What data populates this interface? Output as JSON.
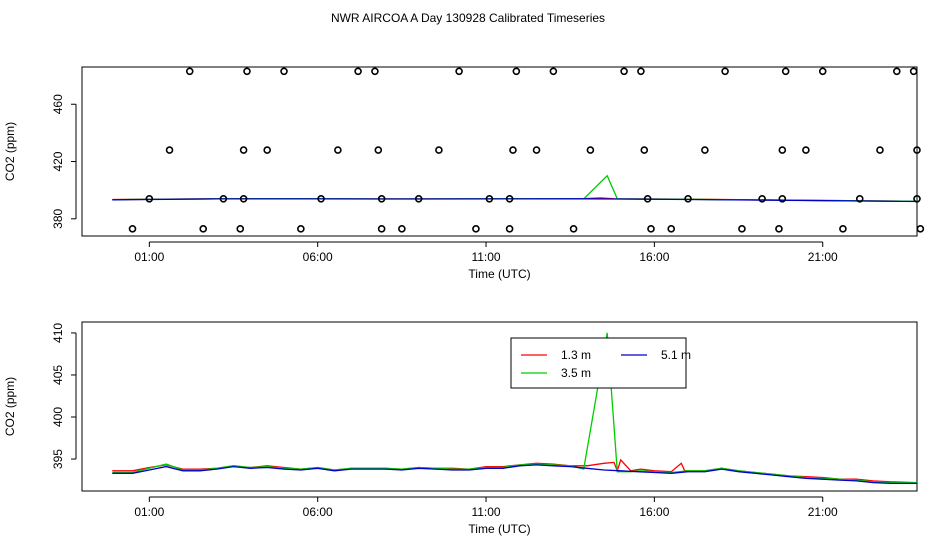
{
  "title": "NWR AIRCOA A  Day 130928  Calibrated Timeseries",
  "chart_data": [
    {
      "type": "scatter",
      "xlabel": "Time (UTC)",
      "ylabel": "CO2 (ppm)",
      "x_ticks": [
        "01:00",
        "06:00",
        "11:00",
        "16:00",
        "21:00"
      ],
      "x_tick_hours": [
        1,
        6,
        11,
        16,
        21
      ],
      "xlim_hours": [
        -1.0,
        23.8
      ],
      "y_ticks": [
        380,
        420,
        460
      ],
      "ylim": [
        368,
        486
      ],
      "colors": {
        "1.3 m": "#ff0000",
        "3.5 m": "#00cc00",
        "5.1 m": "#0000cc",
        "points": "#000000"
      },
      "points": [
        [
          0.5,
          373
        ],
        [
          1.0,
          394
        ],
        [
          1.6,
          428
        ],
        [
          2.2,
          483
        ],
        [
          2.6,
          373
        ],
        [
          3.2,
          394
        ],
        [
          3.7,
          373
        ],
        [
          3.8,
          394
        ],
        [
          3.8,
          428
        ],
        [
          3.9,
          483
        ],
        [
          4.5,
          428
        ],
        [
          5.0,
          483
        ],
        [
          5.5,
          373
        ],
        [
          6.1,
          394
        ],
        [
          6.6,
          428
        ],
        [
          7.2,
          483
        ],
        [
          7.7,
          483
        ],
        [
          7.8,
          428
        ],
        [
          7.9,
          394
        ],
        [
          7.9,
          373
        ],
        [
          8.5,
          373
        ],
        [
          9.0,
          394
        ],
        [
          9.6,
          428
        ],
        [
          10.2,
          483
        ],
        [
          10.7,
          373
        ],
        [
          11.1,
          394
        ],
        [
          11.7,
          373
        ],
        [
          11.7,
          394
        ],
        [
          11.8,
          428
        ],
        [
          11.9,
          483
        ],
        [
          12.5,
          428
        ],
        [
          13.0,
          483
        ],
        [
          13.6,
          373
        ],
        [
          14.1,
          428
        ],
        [
          15.1,
          483
        ],
        [
          15.6,
          483
        ],
        [
          15.7,
          428
        ],
        [
          15.8,
          394
        ],
        [
          15.9,
          373
        ],
        [
          16.5,
          373
        ],
        [
          17.0,
          394
        ],
        [
          17.5,
          428
        ],
        [
          18.1,
          483
        ],
        [
          18.6,
          373
        ],
        [
          19.2,
          394
        ],
        [
          19.7,
          373
        ],
        [
          19.8,
          394
        ],
        [
          19.8,
          428
        ],
        [
          19.9,
          483
        ],
        [
          20.5,
          428
        ],
        [
          21.0,
          483
        ],
        [
          21.6,
          373
        ],
        [
          22.1,
          394
        ],
        [
          22.7,
          428
        ],
        [
          23.2,
          483
        ],
        [
          23.7,
          483
        ],
        [
          23.8,
          428
        ],
        [
          23.8,
          394
        ],
        [
          23.9,
          373
        ]
      ],
      "series": [
        {
          "name": "1.3 m",
          "x": [
            -0.1,
            3.0,
            6.0,
            9.0,
            12.0,
            13.9,
            14.4,
            14.8,
            17.0,
            20.0,
            23.8
          ],
          "values": [
            393.5,
            394.0,
            394.0,
            393.9,
            394.0,
            394.1,
            394.6,
            394.0,
            393.7,
            393.0,
            392.2
          ]
        },
        {
          "name": "3.5 m",
          "x": [
            -0.1,
            3.0,
            6.0,
            9.0,
            12.0,
            13.9,
            14.6,
            14.9,
            17.0,
            20.0,
            23.8
          ],
          "values": [
            393.4,
            394.0,
            394.0,
            393.9,
            394.0,
            394.0,
            410.0,
            394.0,
            393.6,
            393.0,
            392.2
          ]
        },
        {
          "name": "5.1 m",
          "x": [
            -0.1,
            3.0,
            6.0,
            9.0,
            12.0,
            13.9,
            14.9,
            17.0,
            20.0,
            23.8
          ],
          "values": [
            393.3,
            393.9,
            393.9,
            393.8,
            393.9,
            394.0,
            393.8,
            393.5,
            392.9,
            392.1
          ]
        }
      ]
    },
    {
      "type": "line",
      "xlabel": "Time (UTC)",
      "ylabel": "CO2 (ppm)",
      "x_ticks": [
        "01:00",
        "06:00",
        "11:00",
        "16:00",
        "21:00"
      ],
      "x_tick_hours": [
        1,
        6,
        11,
        16,
        21
      ],
      "xlim_hours": [
        -1.0,
        23.8
      ],
      "y_ticks": [
        395,
        400,
        405,
        410
      ],
      "ylim": [
        391.2,
        411.3
      ],
      "legend": {
        "entries": [
          "1.3 m",
          "3.5 m",
          "5.1 m"
        ],
        "placement": "top-center"
      },
      "series": [
        {
          "name": "1.3 m",
          "color": "#ff0000",
          "x": [
            -0.1,
            0.5,
            1.0,
            1.5,
            2.0,
            2.5,
            3.0,
            3.5,
            4.0,
            4.5,
            5.0,
            5.5,
            6.0,
            6.5,
            7.0,
            7.5,
            8.0,
            8.5,
            9.0,
            9.5,
            10.0,
            10.5,
            11.0,
            11.5,
            12.0,
            12.5,
            13.0,
            13.5,
            14.0,
            14.5,
            14.8,
            14.9,
            15.0,
            15.3,
            15.6,
            16.0,
            16.5,
            16.8,
            16.9,
            17.0,
            17.5,
            18.0,
            18.5,
            19.0,
            19.5,
            20.0,
            20.5,
            21.0,
            21.5,
            22.0,
            22.5,
            23.0,
            23.8
          ],
          "values": [
            393.6,
            393.6,
            394.0,
            394.3,
            393.8,
            393.8,
            393.9,
            394.2,
            394.0,
            394.2,
            394.0,
            393.8,
            394.0,
            393.7,
            393.9,
            393.9,
            393.9,
            393.8,
            394.0,
            393.9,
            393.9,
            393.8,
            394.1,
            394.1,
            394.3,
            394.5,
            394.4,
            394.2,
            394.2,
            394.5,
            394.6,
            393.6,
            394.9,
            393.6,
            393.8,
            393.6,
            393.5,
            394.5,
            393.6,
            393.6,
            393.6,
            393.9,
            393.6,
            393.4,
            393.2,
            393.0,
            392.9,
            392.8,
            392.6,
            392.6,
            392.4,
            392.3,
            392.2
          ]
        },
        {
          "name": "3.5 m",
          "color": "#00cc00",
          "x": [
            -0.1,
            0.5,
            1.0,
            1.5,
            2.0,
            2.5,
            3.0,
            3.5,
            4.0,
            4.5,
            5.0,
            5.5,
            6.0,
            6.5,
            7.0,
            7.5,
            8.0,
            8.5,
            9.0,
            9.5,
            10.0,
            10.5,
            11.0,
            11.5,
            12.0,
            12.5,
            13.0,
            13.5,
            13.9,
            14.6,
            14.9,
            15.3,
            15.6,
            16.0,
            16.5,
            17.0,
            17.5,
            18.0,
            18.5,
            19.0,
            19.5,
            20.0,
            20.5,
            21.0,
            21.5,
            22.0,
            22.5,
            23.0,
            23.8
          ],
          "values": [
            393.4,
            393.4,
            393.9,
            394.4,
            393.7,
            393.7,
            393.9,
            394.2,
            394.0,
            394.1,
            393.9,
            393.8,
            394.0,
            393.7,
            393.9,
            393.9,
            393.9,
            393.8,
            394.0,
            393.9,
            393.8,
            393.8,
            394.0,
            394.0,
            394.3,
            394.4,
            394.3,
            394.2,
            393.8,
            410.0,
            393.5,
            393.5,
            393.6,
            393.5,
            393.4,
            393.6,
            393.6,
            393.9,
            393.6,
            393.4,
            393.2,
            393.0,
            392.8,
            392.7,
            392.6,
            392.5,
            392.3,
            392.2,
            392.2
          ]
        },
        {
          "name": "5.1 m",
          "color": "#0000cc",
          "x": [
            -0.1,
            0.5,
            1.0,
            1.5,
            2.0,
            2.5,
            3.0,
            3.5,
            4.0,
            4.5,
            5.0,
            5.5,
            6.0,
            6.5,
            7.0,
            7.5,
            8.0,
            8.5,
            9.0,
            9.5,
            10.0,
            10.5,
            11.0,
            11.5,
            12.0,
            12.5,
            13.0,
            13.5,
            14.0,
            14.5,
            15.0,
            15.5,
            16.0,
            16.5,
            17.0,
            17.5,
            18.0,
            18.5,
            19.0,
            19.5,
            20.0,
            20.5,
            21.0,
            21.5,
            22.0,
            22.5,
            23.0,
            23.8
          ],
          "values": [
            393.3,
            393.3,
            393.7,
            394.1,
            393.6,
            393.6,
            393.8,
            394.1,
            393.9,
            394.0,
            393.8,
            393.7,
            393.9,
            393.6,
            393.8,
            393.8,
            393.8,
            393.7,
            393.9,
            393.8,
            393.7,
            393.7,
            393.9,
            393.9,
            394.2,
            394.3,
            394.2,
            394.1,
            393.9,
            393.7,
            393.6,
            393.5,
            393.4,
            393.3,
            393.5,
            393.5,
            393.8,
            393.5,
            393.3,
            393.1,
            392.9,
            392.7,
            392.6,
            392.5,
            392.4,
            392.2,
            392.1,
            392.1
          ]
        }
      ]
    }
  ]
}
